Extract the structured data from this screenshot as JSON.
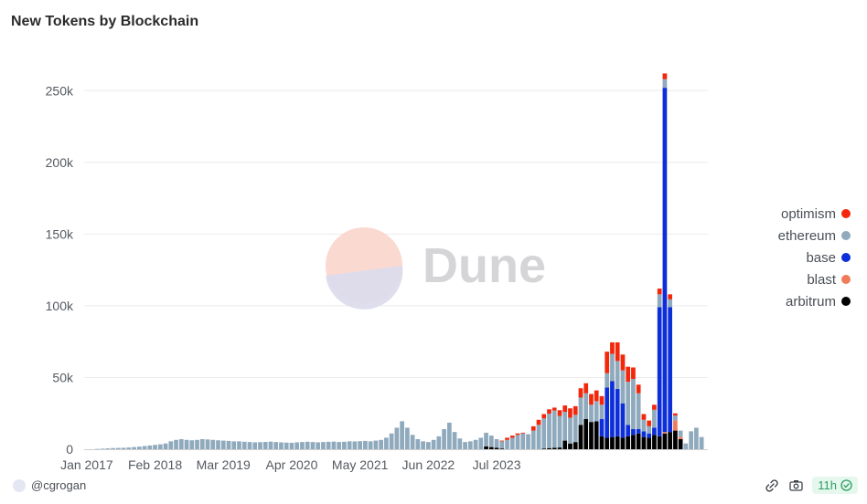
{
  "chart_data": {
    "type": "bar",
    "stacked": true,
    "title": "New Tokens by Blockchain",
    "x_tick_labels": [
      "Jan 2017",
      "Feb 2018",
      "Mar 2019",
      "Apr 2020",
      "May 2021",
      "Jun 2022",
      "Jul 2023"
    ],
    "y_tick_labels": [
      "0",
      "50k",
      "100k",
      "150k",
      "200k",
      "250k"
    ],
    "y_ticks": [
      0,
      50000,
      100000,
      150000,
      200000,
      250000
    ],
    "ylim": [
      0,
      275000
    ],
    "grid": true,
    "legend_position": "right",
    "colors": {
      "optimism": "#f2270b",
      "ethereum": "#8fa9bd",
      "base": "#0d2fd9",
      "blast": "#f07b5b",
      "arbitrum": "#000000"
    },
    "legend_order": [
      "optimism",
      "ethereum",
      "base",
      "blast",
      "arbitrum"
    ],
    "stack_order": [
      "arbitrum",
      "blast",
      "base",
      "ethereum",
      "optimism"
    ],
    "series": [
      {
        "name": "ethereum",
        "values": [
          0,
          0,
          200,
          400,
          600,
          800,
          900,
          1000,
          1200,
          1500,
          1800,
          2200,
          2600,
          3000,
          3400,
          4000,
          5500,
          6500,
          7000,
          6500,
          6200,
          6500,
          7000,
          6800,
          6500,
          6200,
          6000,
          5800,
          5500,
          5500,
          5200,
          5000,
          4800,
          4900,
          5100,
          5300,
          5000,
          4800,
          4600,
          4500,
          4800,
          5000,
          5200,
          5000,
          4800,
          5000,
          5200,
          5300,
          5000,
          5200,
          5500,
          5400,
          5600,
          5800,
          5500,
          6000,
          6500,
          8000,
          11000,
          15000,
          19500,
          15000,
          10000,
          7000,
          5500,
          5000,
          6500,
          9000,
          14000,
          18500,
          12000,
          7500,
          5000,
          5500,
          6500,
          8000,
          9500,
          8000,
          6000,
          5000,
          6500,
          8000,
          10000,
          11000,
          10500,
          13000,
          17000,
          21000,
          24000,
          26000,
          22000,
          20000,
          18000,
          19000,
          19000,
          18000,
          12000,
          14000,
          10000,
          10000,
          19000,
          19500,
          23000,
          30000,
          35000,
          25000,
          8000,
          5000,
          12500,
          9000,
          6000,
          5500,
          3500,
          4500,
          4000,
          12500,
          15000,
          8500
        ],
        "note": ""
      },
      {
        "name": "arbitrum",
        "values": [
          0,
          0,
          0,
          0,
          0,
          0,
          0,
          0,
          0,
          0,
          0,
          0,
          0,
          0,
          0,
          0,
          0,
          0,
          0,
          0,
          0,
          0,
          0,
          0,
          0,
          0,
          0,
          0,
          0,
          0,
          0,
          0,
          0,
          0,
          0,
          0,
          0,
          0,
          0,
          0,
          0,
          0,
          0,
          0,
          0,
          0,
          0,
          0,
          0,
          0,
          0,
          0,
          0,
          0,
          0,
          0,
          0,
          0,
          0,
          0,
          0,
          0,
          0,
          0,
          0,
          0,
          0,
          0,
          0,
          0,
          0,
          0,
          0,
          0,
          0,
          0,
          2000,
          1500,
          1000,
          500,
          0,
          0,
          0,
          0,
          0,
          0,
          0,
          500,
          800,
          1000,
          1200,
          6000,
          4000,
          5000,
          17000,
          21000,
          19000,
          19500,
          9000,
          8000,
          8500,
          9000,
          8000,
          9000,
          10000,
          11000,
          8500,
          8000,
          10000,
          9000,
          11000,
          12000,
          13000,
          7000
        ]
      },
      {
        "name": "blast",
        "values": [
          0,
          0,
          0,
          0,
          0,
          0,
          0,
          0,
          0,
          0,
          0,
          0,
          0,
          0,
          0,
          0,
          0,
          0,
          0,
          0,
          0,
          0,
          0,
          0,
          0,
          0,
          0,
          0,
          0,
          0,
          0,
          0,
          0,
          0,
          0,
          0,
          0,
          0,
          0,
          0,
          0,
          0,
          0,
          0,
          0,
          0,
          0,
          0,
          0,
          0,
          0,
          0,
          0,
          0,
          0,
          0,
          0,
          0,
          0,
          0,
          0,
          0,
          0,
          0,
          0,
          0,
          0,
          0,
          0,
          0,
          0,
          0,
          0,
          0,
          0,
          0,
          0,
          0,
          0,
          0,
          0,
          0,
          0,
          0,
          0,
          0,
          0,
          0,
          0,
          0,
          0,
          0,
          0,
          0,
          0,
          0,
          0,
          0,
          0,
          0,
          0,
          0,
          0,
          0,
          0,
          0,
          0,
          0,
          0,
          0,
          1000,
          0,
          7000,
          1500,
          0,
          0
        ]
      },
      {
        "name": "base",
        "values": [
          0,
          0,
          0,
          0,
          0,
          0,
          0,
          0,
          0,
          0,
          0,
          0,
          0,
          0,
          0,
          0,
          0,
          0,
          0,
          0,
          0,
          0,
          0,
          0,
          0,
          0,
          0,
          0,
          0,
          0,
          0,
          0,
          0,
          0,
          0,
          0,
          0,
          0,
          0,
          0,
          0,
          0,
          0,
          0,
          0,
          0,
          0,
          0,
          0,
          0,
          0,
          0,
          0,
          0,
          0,
          0,
          0,
          0,
          0,
          0,
          0,
          0,
          0,
          0,
          0,
          0,
          0,
          0,
          0,
          0,
          0,
          0,
          0,
          0,
          0,
          0,
          0,
          0,
          0,
          0,
          0,
          0,
          0,
          0,
          0,
          0,
          0,
          0,
          0,
          0,
          0,
          0,
          0,
          0,
          0,
          0,
          0,
          0,
          12000,
          35000,
          39000,
          33000,
          24000,
          8000,
          4000,
          3000,
          4000,
          3000,
          5000,
          90000,
          240000,
          87000
        ]
      },
      {
        "name": "optimism",
        "values": [
          0,
          0,
          0,
          0,
          0,
          0,
          0,
          0,
          0,
          0,
          0,
          0,
          0,
          0,
          0,
          0,
          0,
          0,
          0,
          0,
          0,
          0,
          0,
          0,
          0,
          0,
          0,
          0,
          0,
          0,
          0,
          0,
          0,
          0,
          0,
          0,
          0,
          0,
          0,
          0,
          0,
          0,
          0,
          0,
          0,
          0,
          0,
          0,
          0,
          0,
          0,
          0,
          0,
          0,
          0,
          0,
          0,
          0,
          0,
          0,
          0,
          0,
          0,
          0,
          0,
          0,
          0,
          0,
          0,
          0,
          0,
          0,
          0,
          0,
          0,
          0,
          0,
          0,
          0,
          500,
          1500,
          1500,
          1000,
          500,
          0,
          3000,
          3500,
          3000,
          3000,
          2000,
          4000,
          4500,
          6500,
          6000,
          6500,
          7000,
          7500,
          7500,
          6000,
          15000,
          8000,
          13000,
          11000,
          10500,
          8000,
          6000,
          4000,
          4000,
          3500,
          4000,
          4000,
          3500,
          1500
        ]
      }
    ],
    "x_tick_bar_index": [
      0,
      13,
      26,
      39,
      52,
      65,
      78
    ]
  },
  "watermark": {
    "text": "Dune"
  },
  "footer": {
    "author": "@cgrogan",
    "refresh": "11h"
  },
  "icons": {
    "avatar": "avatar-icon",
    "link": "link-icon",
    "camera": "camera-icon",
    "check": "check-circle-icon"
  }
}
